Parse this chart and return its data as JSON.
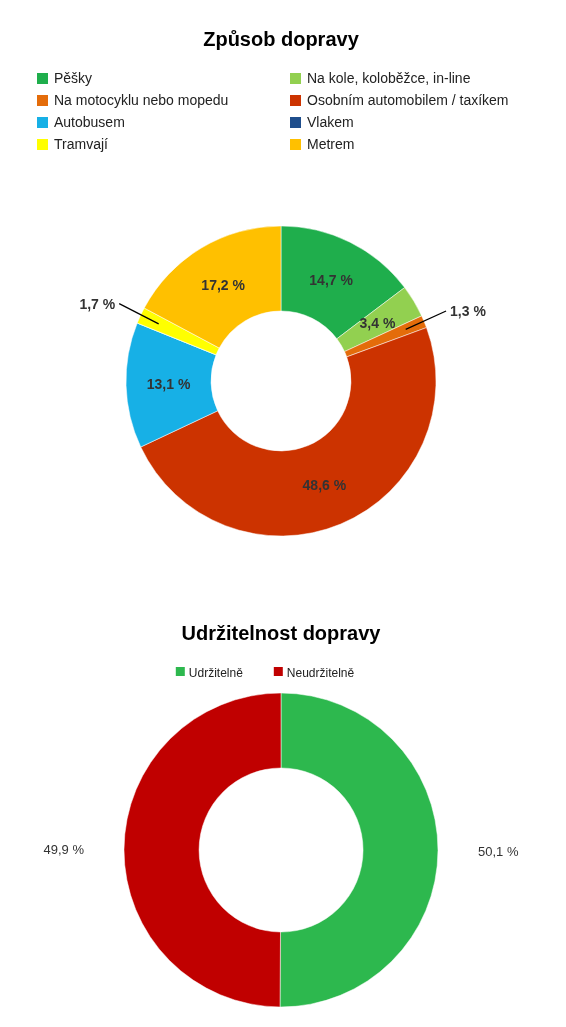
{
  "chart_data": [
    {
      "type": "donut",
      "title": "Způsob dopravy",
      "categories": [
        "Pěšky",
        "Na kole, koloběžce, in-line",
        "Na motocyklu nebo mopedu",
        "Osobním automobilem / taxíkem",
        "Autobusem",
        "Vlakem",
        "Tramvají",
        "Metrem"
      ],
      "values": [
        14.7,
        3.4,
        1.3,
        48.6,
        13.1,
        0,
        1.7,
        17.2
      ],
      "colors": [
        "#1fae4c",
        "#92d050",
        "#e46c0a",
        "#cc3300",
        "#17b0e6",
        "#1f4e8c",
        "#ffff00",
        "#ffc000"
      ],
      "value_labels": [
        "14,7 %",
        "3,4 %",
        "1,3 %",
        "48,6 %",
        "13,1 %",
        null,
        "1,7 %",
        "17,2 %"
      ],
      "legend": "top"
    },
    {
      "type": "donut",
      "title": "Udržitelnost dopravy",
      "categories": [
        "Udržitelně",
        "Neudržitelně"
      ],
      "values": [
        50.1,
        49.9
      ],
      "colors": [
        "#2db84e",
        "#c00000"
      ],
      "value_labels": [
        "50,1 %",
        "49,9 %"
      ],
      "legend": "top"
    }
  ]
}
